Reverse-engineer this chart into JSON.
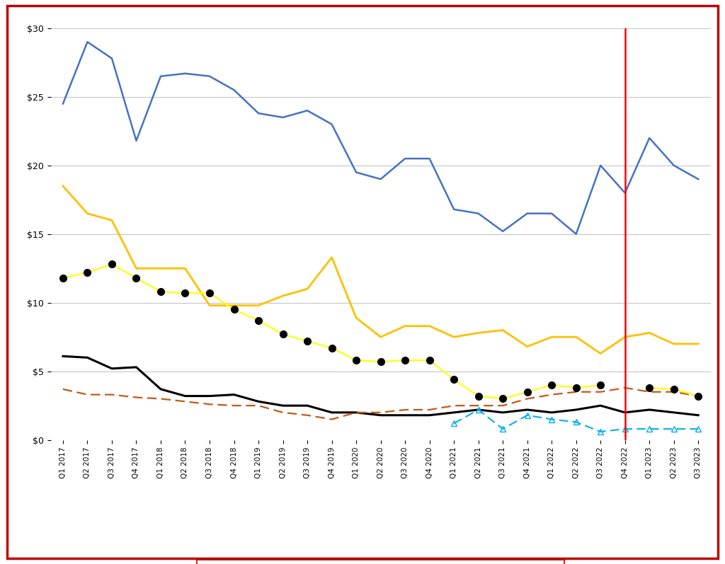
{
  "x_labels": [
    "Q1 2017",
    "Q2 2017",
    "Q3 2017",
    "Q4 2017",
    "Q1 2018",
    "Q2 2018",
    "Q3 2018",
    "Q4 2018",
    "Q1 2019",
    "Q2 2019",
    "Q3 2019",
    "Q4 2019",
    "Q1 2020",
    "Q2 2020",
    "Q3 2020",
    "Q4 2020",
    "Q1 2021",
    "Q2 2021",
    "Q3 2021",
    "Q4 2021",
    "Q1 2022",
    "Q2 2022",
    "Q3 2022",
    "Q4 2022",
    "Q1 2023",
    "Q2 2023",
    "Q3 2023"
  ],
  "1G": [
    24.5,
    29.0,
    27.8,
    21.8,
    26.5,
    26.7,
    26.5,
    25.5,
    23.8,
    23.5,
    24.0,
    23.0,
    19.5,
    19.0,
    20.5,
    20.5,
    16.8,
    16.5,
    15.2,
    16.5,
    16.5,
    15.0,
    20.0,
    18.0,
    22.0,
    20.0,
    19.0
  ],
  "10G": [
    18.5,
    16.5,
    16.0,
    12.5,
    12.5,
    12.5,
    9.8,
    9.8,
    9.8,
    10.5,
    11.0,
    13.3,
    8.9,
    7.5,
    8.3,
    8.3,
    7.5,
    7.8,
    8.0,
    6.8,
    7.5,
    7.5,
    6.3,
    7.5,
    7.8,
    7.0,
    7.0
  ],
  "40G": [
    11.8,
    12.2,
    12.8,
    11.8,
    10.8,
    10.7,
    10.7,
    9.5,
    8.7,
    7.7,
    7.2,
    6.7,
    5.8,
    5.7,
    5.8,
    5.8,
    4.4,
    3.2,
    3.0,
    3.5,
    4.0,
    3.8,
    4.0,
    null,
    3.8,
    3.7,
    3.2
  ],
  "100G": [
    6.1,
    6.0,
    5.2,
    5.3,
    3.7,
    3.2,
    3.2,
    3.3,
    2.8,
    2.5,
    2.5,
    2.0,
    2.0,
    1.8,
    1.8,
    1.8,
    2.0,
    2.2,
    2.0,
    2.2,
    2.0,
    2.2,
    2.5,
    2.0,
    2.2,
    2.0,
    1.8
  ],
  "25G_50G": [
    3.7,
    3.3,
    3.3,
    3.1,
    3.0,
    2.8,
    2.6,
    2.5,
    2.5,
    2.0,
    1.8,
    1.5,
    2.0,
    2.0,
    2.2,
    2.2,
    2.5,
    2.5,
    2.5,
    3.0,
    3.3,
    3.5,
    3.5,
    3.8,
    3.5,
    3.5,
    3.2
  ],
  "200G_400G": [
    null,
    null,
    null,
    null,
    null,
    null,
    null,
    null,
    null,
    null,
    null,
    null,
    null,
    null,
    null,
    null,
    1.2,
    2.2,
    0.8,
    1.8,
    1.5,
    1.3,
    0.6,
    0.8,
    0.8,
    0.8,
    0.8
  ],
  "vline_x_index": 23,
  "colors": {
    "1G": "#4472C4",
    "10G": "#FFC000",
    "40G_line": "#FFFF00",
    "40G_marker": "#000000",
    "100G": "#000000",
    "25G_50G": "#C55A11",
    "200G_400G": "#00B0F0"
  },
  "ylim": [
    0,
    30
  ],
  "yticks": [
    0,
    5,
    10,
    15,
    20,
    25,
    30
  ],
  "ytick_labels": [
    "$0",
    "$5",
    "$10",
    "$15",
    "$20",
    "$25",
    "$30"
  ],
  "vline_color": "#FF0000",
  "border_color": "#C00000",
  "legend_border_color": "#C00000",
  "background_color": "#FFFFFF",
  "grid_color": "#C0C0C0"
}
